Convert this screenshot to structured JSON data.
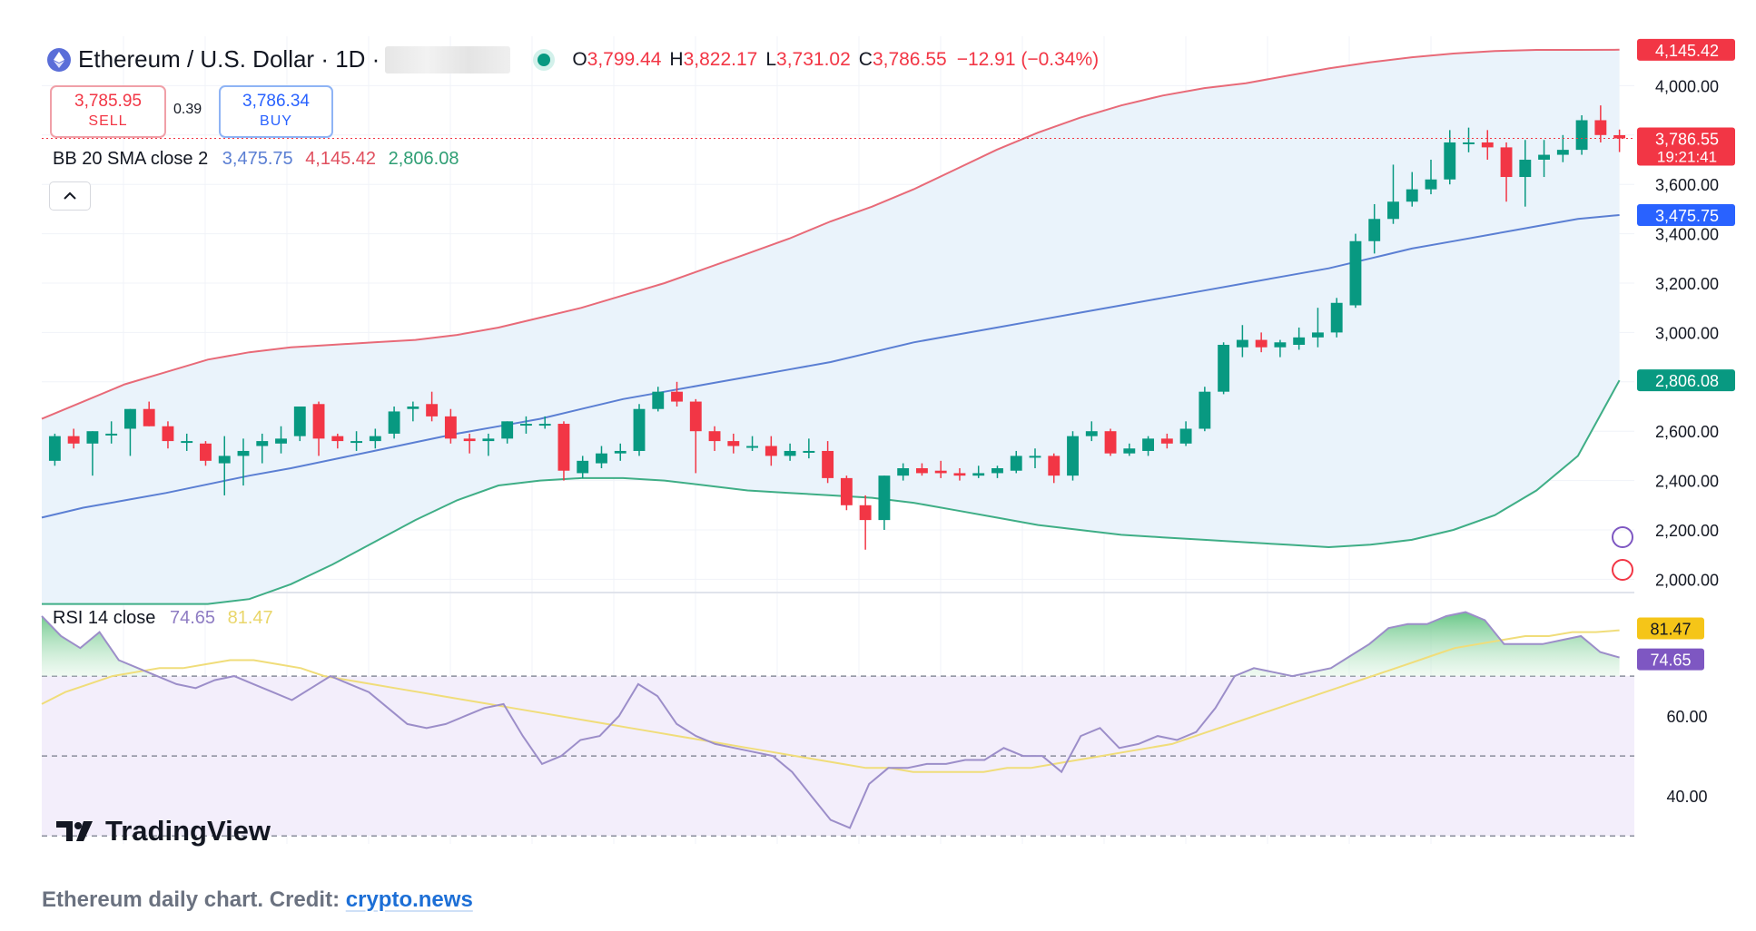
{
  "header": {
    "title": "Ethereum / U.S. Dollar · 1D ·",
    "ohlc": [
      {
        "key": "O",
        "value": "3,799.44"
      },
      {
        "key": "H",
        "value": "3,822.17"
      },
      {
        "key": "L",
        "value": "3,731.02"
      },
      {
        "key": "C",
        "value": "3,786.55"
      }
    ],
    "change": "−12.91 (−0.34%)"
  },
  "trade": {
    "sell_price": "3,785.95",
    "sell_label": "SELL",
    "spread": "0.39",
    "buy_price": "3,786.34",
    "buy_label": "BUY"
  },
  "bb": {
    "label": "BB 20 SMA close 2",
    "basis": "3,475.75",
    "upper": "4,145.42",
    "lower": "2,806.08"
  },
  "rsi": {
    "label": "RSI 14 close",
    "value": "74.65",
    "ma": "81.47"
  },
  "price_axis": {
    "ticks": [
      {
        "v": 4000,
        "label": "4,000.00"
      },
      {
        "v": 3600,
        "label": "3,600.00"
      },
      {
        "v": 3400,
        "label": "3,400.00"
      },
      {
        "v": 3200,
        "label": "3,200.00"
      },
      {
        "v": 3000,
        "label": "3,000.00"
      },
      {
        "v": 2600,
        "label": "2,600.00"
      },
      {
        "v": 2400,
        "label": "2,400.00"
      },
      {
        "v": 2200,
        "label": "2,200.00"
      },
      {
        "v": 2000,
        "label": "2,000.00"
      }
    ],
    "tags": [
      {
        "v": 4145.42,
        "label": "4,145.42",
        "color": "#f23645"
      },
      {
        "v": 3786.55,
        "label": "3,786.55",
        "sub": "19:21:41",
        "color": "#f23645"
      },
      {
        "v": 3475.75,
        "label": "3,475.75",
        "color": "#2962ff"
      },
      {
        "v": 2806.08,
        "label": "2,806.08",
        "color": "#089981"
      }
    ]
  },
  "rsi_axis": {
    "ticks": [
      {
        "v": 60,
        "label": "60.00"
      },
      {
        "v": 40,
        "label": "40.00"
      }
    ],
    "tags": [
      {
        "v": 81.47,
        "label": "81.47",
        "color": "#f5c518",
        "text": "#131722"
      },
      {
        "v": 74.65,
        "label": "74.65",
        "color": "#7e57c2",
        "text": "#ffffff"
      }
    ]
  },
  "colors": {
    "up": "#089981",
    "down": "#f23645",
    "bb_basis": "#5b7fd3",
    "bb_upper": "#e86a78",
    "bb_lower": "#3fae86",
    "bb_fill": "#eaf3fb",
    "rsi_line": "#9c8ec9",
    "rsi_ma": "#f0dd7a"
  },
  "chart_data": [
    {
      "type": "candlestick",
      "title": "Ethereum / U.S. Dollar · 1D",
      "ylim": [
        1950,
        4200
      ],
      "grid": true,
      "candles": [
        [
          2480,
          2590,
          2460,
          2580
        ],
        [
          2580,
          2610,
          2530,
          2550
        ],
        [
          2550,
          2600,
          2420,
          2600
        ],
        [
          2590,
          2640,
          2550,
          2590
        ],
        [
          2610,
          2690,
          2500,
          2690
        ],
        [
          2690,
          2720,
          2620,
          2620
        ],
        [
          2620,
          2640,
          2530,
          2560
        ],
        [
          2560,
          2590,
          2520,
          2560
        ],
        [
          2550,
          2560,
          2460,
          2480
        ],
        [
          2470,
          2580,
          2340,
          2500
        ],
        [
          2500,
          2570,
          2380,
          2520
        ],
        [
          2540,
          2590,
          2470,
          2560
        ],
        [
          2550,
          2620,
          2510,
          2570
        ],
        [
          2580,
          2700,
          2560,
          2700
        ],
        [
          2710,
          2720,
          2500,
          2570
        ],
        [
          2580,
          2590,
          2530,
          2560
        ],
        [
          2560,
          2600,
          2520,
          2560
        ],
        [
          2560,
          2610,
          2530,
          2580
        ],
        [
          2590,
          2700,
          2570,
          2680
        ],
        [
          2690,
          2720,
          2640,
          2700
        ],
        [
          2710,
          2760,
          2640,
          2660
        ],
        [
          2660,
          2690,
          2550,
          2570
        ],
        [
          2570,
          2590,
          2510,
          2560
        ],
        [
          2560,
          2590,
          2500,
          2570
        ],
        [
          2570,
          2640,
          2550,
          2640
        ],
        [
          2630,
          2660,
          2590,
          2630
        ],
        [
          2630,
          2660,
          2610,
          2630
        ],
        [
          2630,
          2640,
          2400,
          2440
        ],
        [
          2430,
          2500,
          2410,
          2480
        ],
        [
          2470,
          2540,
          2450,
          2510
        ],
        [
          2510,
          2550,
          2480,
          2520
        ],
        [
          2520,
          2710,
          2500,
          2690
        ],
        [
          2690,
          2780,
          2680,
          2760
        ],
        [
          2760,
          2800,
          2700,
          2720
        ],
        [
          2720,
          2730,
          2430,
          2600
        ],
        [
          2600,
          2620,
          2520,
          2560
        ],
        [
          2560,
          2590,
          2510,
          2540
        ],
        [
          2540,
          2580,
          2520,
          2540
        ],
        [
          2540,
          2580,
          2460,
          2500
        ],
        [
          2500,
          2550,
          2480,
          2520
        ],
        [
          2520,
          2570,
          2490,
          2520
        ],
        [
          2520,
          2560,
          2390,
          2410
        ],
        [
          2410,
          2420,
          2280,
          2300
        ],
        [
          2300,
          2340,
          2120,
          2240
        ],
        [
          2240,
          2420,
          2200,
          2420
        ],
        [
          2420,
          2470,
          2400,
          2450
        ],
        [
          2450,
          2470,
          2420,
          2430
        ],
        [
          2440,
          2480,
          2410,
          2430
        ],
        [
          2430,
          2450,
          2400,
          2420
        ],
        [
          2420,
          2460,
          2410,
          2430
        ],
        [
          2430,
          2460,
          2410,
          2450
        ],
        [
          2440,
          2520,
          2430,
          2500
        ],
        [
          2500,
          2530,
          2450,
          2500
        ],
        [
          2500,
          2510,
          2390,
          2420
        ],
        [
          2420,
          2600,
          2400,
          2580
        ],
        [
          2580,
          2640,
          2560,
          2600
        ],
        [
          2600,
          2610,
          2500,
          2510
        ],
        [
          2510,
          2550,
          2500,
          2530
        ],
        [
          2520,
          2580,
          2500,
          2570
        ],
        [
          2570,
          2590,
          2530,
          2550
        ],
        [
          2550,
          2640,
          2540,
          2610
        ],
        [
          2610,
          2780,
          2600,
          2760
        ],
        [
          2760,
          2960,
          2750,
          2950
        ],
        [
          2940,
          3030,
          2900,
          2970
        ],
        [
          2970,
          3000,
          2920,
          2940
        ],
        [
          2940,
          2970,
          2900,
          2960
        ],
        [
          2950,
          3020,
          2930,
          2980
        ],
        [
          2980,
          3100,
          2940,
          3000
        ],
        [
          3000,
          3140,
          2980,
          3120
        ],
        [
          3110,
          3400,
          3100,
          3370
        ],
        [
          3370,
          3520,
          3320,
          3460
        ],
        [
          3460,
          3680,
          3440,
          3530
        ],
        [
          3530,
          3650,
          3510,
          3580
        ],
        [
          3580,
          3700,
          3560,
          3620
        ],
        [
          3620,
          3820,
          3600,
          3770
        ],
        [
          3770,
          3830,
          3730,
          3770
        ],
        [
          3770,
          3820,
          3700,
          3750
        ],
        [
          3750,
          3770,
          3530,
          3630
        ],
        [
          3630,
          3780,
          3510,
          3700
        ],
        [
          3700,
          3780,
          3630,
          3720
        ],
        [
          3720,
          3800,
          3690,
          3740
        ],
        [
          3740,
          3880,
          3720,
          3860
        ],
        [
          3860,
          3920,
          3770,
          3800
        ],
        [
          3799.44,
          3822.17,
          3731.02,
          3786.55
        ]
      ],
      "bollinger": {
        "basis": [
          2250,
          2290,
          2320,
          2350,
          2385,
          2420,
          2450,
          2485,
          2520,
          2555,
          2590,
          2620,
          2650,
          2690,
          2730,
          2760,
          2790,
          2820,
          2850,
          2880,
          2920,
          2960,
          2990,
          3020,
          3050,
          3080,
          3110,
          3140,
          3170,
          3200,
          3230,
          3260,
          3300,
          3340,
          3370,
          3400,
          3430,
          3460,
          3475.75
        ],
        "upper": [
          2650,
          2720,
          2790,
          2840,
          2890,
          2920,
          2940,
          2950,
          2960,
          2970,
          2990,
          3020,
          3060,
          3100,
          3150,
          3200,
          3260,
          3320,
          3380,
          3450,
          3510,
          3580,
          3660,
          3740,
          3810,
          3870,
          3920,
          3960,
          3990,
          4010,
          4040,
          4070,
          4095,
          4115,
          4130,
          4140,
          4145,
          4145,
          4145.42
        ],
        "lower": [
          1850,
          1860,
          1850,
          1860,
          1880,
          1920,
          1980,
          2060,
          2150,
          2240,
          2320,
          2380,
          2400,
          2410,
          2410,
          2400,
          2380,
          2360,
          2350,
          2340,
          2330,
          2310,
          2280,
          2250,
          2220,
          2200,
          2180,
          2170,
          2160,
          2150,
          2140,
          2130,
          2140,
          2160,
          2200,
          2260,
          2360,
          2500,
          2806.08
        ]
      }
    },
    {
      "type": "line",
      "title": "RSI 14 close",
      "ylim": [
        28,
        90
      ],
      "series": [
        {
          "name": "RSI",
          "values": [
            85,
            80,
            77,
            81,
            74,
            72,
            70,
            68,
            67,
            69,
            70,
            68,
            66,
            64,
            67,
            70,
            68,
            66,
            62,
            58,
            57,
            58,
            60,
            62,
            63,
            55,
            48,
            50,
            54,
            55,
            60,
            68,
            65,
            58,
            55,
            53,
            52,
            51,
            50,
            46,
            40,
            34,
            32,
            43,
            47,
            47,
            48,
            48,
            49,
            49,
            52,
            50,
            50,
            46,
            55,
            57,
            52,
            53,
            55,
            54,
            56,
            62,
            70,
            72,
            71,
            70,
            71,
            72,
            75,
            78,
            82,
            83,
            83,
            85,
            86,
            84,
            78,
            78,
            78,
            79,
            80,
            76,
            74.65
          ]
        },
        {
          "name": "RSI MA",
          "values": [
            63,
            66,
            68,
            70,
            71,
            72,
            72,
            73,
            74,
            74,
            73,
            72,
            70,
            69,
            68,
            67,
            66,
            65,
            64,
            63,
            62,
            61,
            60,
            59,
            58,
            57,
            56,
            55,
            54,
            53,
            52,
            51,
            50,
            49,
            48,
            47,
            47,
            46,
            46,
            46,
            46,
            47,
            47,
            48,
            49,
            50,
            51,
            52,
            53,
            55,
            57,
            59,
            61,
            63,
            65,
            67,
            69,
            71,
            73,
            75,
            77,
            78,
            79,
            80,
            80,
            81,
            81,
            81.47
          ]
        }
      ],
      "reference_lines": [
        70,
        50,
        30
      ]
    }
  ],
  "logo": "TradingView",
  "caption": {
    "text": "Ethereum daily chart. Credit: ",
    "link": "crypto.news"
  }
}
